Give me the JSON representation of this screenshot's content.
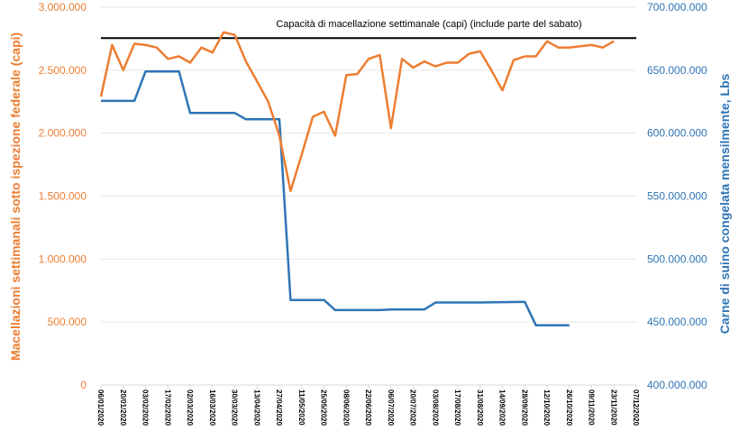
{
  "chart_data": {
    "type": "line",
    "title": "",
    "y_left": {
      "label": "Macellazioni settimanali sotto ispezione federale (capi)",
      "range": [
        0,
        3000000
      ],
      "ticks": [
        "0",
        "500.000",
        "1.000.000",
        "1.500.000",
        "2.000.000",
        "2.500.000",
        "3.000.000"
      ],
      "color": "#ED7D31"
    },
    "y_right": {
      "label": "Carne di suino congelata mensilmente, Lbs",
      "range": [
        400000000,
        700000000
      ],
      "ticks": [
        "400.000.000",
        "450.000.000",
        "500.000.000",
        "550.000.000",
        "600.000.000",
        "650.000.000",
        "700.000.000"
      ],
      "color": "#2E75B6"
    },
    "x_axis": {
      "range": [
        "06/01/2020",
        "07/12/2020"
      ],
      "ticks": [
        "06/01/2020",
        "20/01/2020",
        "03/02/2020",
        "17/02/2020",
        "02/03/2020",
        "16/03/2020",
        "30/03/2020",
        "13/04/2020",
        "27/04/2020",
        "11/05/2020",
        "25/05/2020",
        "08/06/2020",
        "22/06/2020",
        "06/07/2020",
        "20/07/2020",
        "03/08/2020",
        "17/08/2020",
        "31/08/2020",
        "14/09/2020",
        "28/09/2020",
        "12/10/2020",
        "26/10/2020",
        "09/11/2020",
        "23/11/2020",
        "07/12/2020"
      ]
    },
    "grid": true,
    "capacity": {
      "label": "Capacità di macellazione settimanale (capi) (include parte del sabato)",
      "value": 2755000,
      "color": "#000000"
    },
    "series": [
      {
        "axis": "left",
        "color": "#ED7D31",
        "x": [
          "06/01/2020",
          "13/01/2020",
          "20/01/2020",
          "27/01/2020",
          "03/02/2020",
          "10/02/2020",
          "17/02/2020",
          "24/02/2020",
          "02/03/2020",
          "09/03/2020",
          "16/03/2020",
          "23/03/2020",
          "30/03/2020",
          "06/04/2020",
          "13/04/2020",
          "20/04/2020",
          "27/04/2020",
          "04/05/2020",
          "11/05/2020",
          "18/05/2020",
          "25/05/2020",
          "01/06/2020",
          "08/06/2020",
          "15/06/2020",
          "22/06/2020",
          "29/06/2020",
          "06/07/2020",
          "13/07/2020",
          "20/07/2020",
          "27/07/2020",
          "03/08/2020",
          "10/08/2020",
          "17/08/2020",
          "24/08/2020",
          "31/08/2020",
          "07/09/2020",
          "14/09/2020",
          "21/09/2020",
          "28/09/2020",
          "05/10/2020",
          "12/10/2020",
          "19/10/2020",
          "26/10/2020",
          "02/11/2020",
          "09/11/2020",
          "16/11/2020",
          "23/11/2020"
        ],
        "values": [
          2290000,
          2700000,
          2500000,
          2710000,
          2700000,
          2680000,
          2590000,
          2610000,
          2560000,
          2680000,
          2640000,
          2800000,
          2780000,
          2570000,
          2410000,
          2250000,
          1980000,
          1540000,
          1830000,
          2130000,
          2170000,
          1980000,
          2460000,
          2470000,
          2590000,
          2620000,
          2040000,
          2590000,
          2520000,
          2570000,
          2530000,
          2560000,
          2560000,
          2630000,
          2650000,
          2500000,
          2340000,
          2580000,
          2610000,
          2610000,
          2730000,
          2680000,
          2680000,
          2690000,
          2700000,
          2680000,
          2730000
        ]
      },
      {
        "axis": "right",
        "color": "#2E75B6",
        "x": [
          "06/01/2020",
          "27/01/2020",
          "03/02/2020",
          "24/02/2020",
          "02/03/2020",
          "30/03/2020",
          "06/04/2020",
          "27/04/2020",
          "04/05/2020",
          "25/05/2020",
          "01/06/2020",
          "29/06/2020",
          "06/07/2020",
          "27/07/2020",
          "03/08/2020",
          "31/08/2020",
          "28/09/2020",
          "05/10/2020",
          "26/10/2020"
        ],
        "values": [
          625600000,
          625600000,
          649000000,
          649000000,
          616000000,
          616000000,
          611000000,
          611000000,
          467500000,
          467500000,
          459500000,
          459500000,
          460000000,
          460000000,
          465500000,
          465500000,
          466000000,
          447500000,
          447500000
        ]
      }
    ]
  }
}
